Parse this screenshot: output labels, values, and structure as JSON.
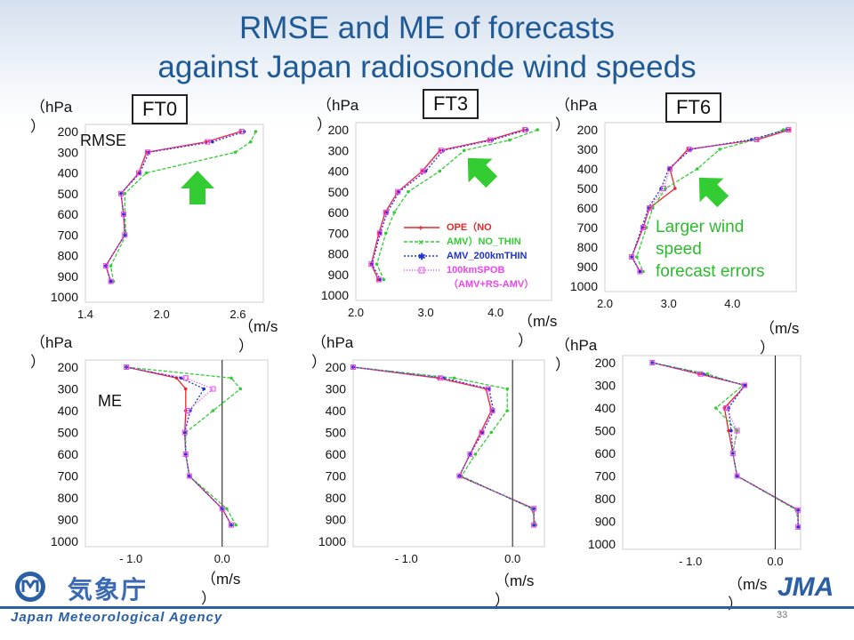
{
  "slide": {
    "title_line1": "RMSE and ME of forecasts",
    "title_line2": "against Japan radiosonde wind speeds",
    "page_number": "33",
    "agency_jp": "気象庁",
    "agency_en": "Japan Meteorological Agency",
    "jma_logo": "JMA"
  },
  "labels": {
    "ft0": "FT0",
    "ft3": "FT3",
    "ft6": "FT6",
    "rmse": "RMSE",
    "me": "ME",
    "hpa": "（hPa",
    "hpa_close": "）",
    "ms": "（m/s",
    "ms_close": "）",
    "note_line1": "Larger wind",
    "note_line2": "speed",
    "note_line3": "forecast errors"
  },
  "legend": [
    {
      "label": "OPE（NO",
      "color": "#e8262a"
    },
    {
      "label": "AMV）NO_THIN",
      "color": "#33cc33"
    },
    {
      "label": "AMV_200kmTHIN",
      "color": "#2233cc"
    },
    {
      "label": "100kmSPOB",
      "color": "#ee44ee"
    },
    {
      "label": "（AMV+RS-AMV）",
      "color": "#ee44ee"
    }
  ],
  "colors": {
    "ope": "#e8262a",
    "nothin": "#33cc33",
    "t200": "#2233cc",
    "spob": "#ee44ee",
    "accent": "#1f5a96",
    "arrow": "#33cc33"
  },
  "chart_data": [
    {
      "id": "rmse_ft0",
      "type": "line",
      "ylabel": "hPa",
      "xlabel": "m/s",
      "y": [
        200,
        250,
        300,
        400,
        500,
        600,
        700,
        850,
        925
      ],
      "ylim": [
        1000,
        200
      ],
      "xlim": [
        1.4,
        2.8
      ],
      "xticks": [
        "1.4",
        "2.0",
        "2.6"
      ],
      "xtick_values": [
        1.4,
        2.0,
        2.6
      ],
      "yticks": [
        "200",
        "300",
        "400",
        "500",
        "600",
        "700",
        "800",
        "900",
        "1000"
      ],
      "series": [
        {
          "name": "OPE",
          "x": [
            2.62,
            2.35,
            1.88,
            1.82,
            1.68,
            1.7,
            1.71,
            1.56,
            1.6
          ]
        },
        {
          "name": "NO_THIN",
          "x": [
            2.74,
            2.7,
            2.58,
            1.88,
            1.71,
            1.71,
            1.72,
            1.6,
            1.62
          ]
        },
        {
          "name": "200kmTHIN",
          "x": [
            2.65,
            2.4,
            1.9,
            1.83,
            1.68,
            1.7,
            1.71,
            1.56,
            1.6
          ]
        },
        {
          "name": "100kmSPOB",
          "x": [
            2.63,
            2.36,
            1.89,
            1.82,
            1.68,
            1.7,
            1.71,
            1.56,
            1.6
          ]
        }
      ]
    },
    {
      "id": "rmse_ft3",
      "type": "line",
      "ylabel": "hPa",
      "xlabel": "m/s",
      "y": [
        200,
        250,
        300,
        400,
        500,
        600,
        700,
        850,
        925
      ],
      "ylim": [
        1000,
        200
      ],
      "xlim": [
        2.0,
        4.8
      ],
      "xticks": [
        "2.0",
        "3.0",
        "4.0"
      ],
      "xtick_values": [
        2.0,
        3.0,
        4.0
      ],
      "yticks": [
        "200",
        "300",
        "400",
        "500",
        "600",
        "700",
        "800",
        "900",
        "1000"
      ],
      "series": [
        {
          "name": "OPE",
          "x": [
            4.4,
            3.9,
            3.2,
            2.95,
            2.6,
            2.42,
            2.33,
            2.22,
            2.32
          ]
        },
        {
          "name": "NO_THIN",
          "x": [
            4.6,
            4.2,
            3.55,
            3.2,
            2.75,
            2.55,
            2.43,
            2.3,
            2.4
          ]
        },
        {
          "name": "200kmTHIN",
          "x": [
            4.45,
            3.95,
            3.25,
            3.0,
            2.62,
            2.45,
            2.35,
            2.23,
            2.35
          ]
        },
        {
          "name": "100kmSPOB",
          "x": [
            4.42,
            3.92,
            3.22,
            2.96,
            2.6,
            2.43,
            2.34,
            2.22,
            2.33
          ]
        }
      ]
    },
    {
      "id": "rmse_ft6",
      "type": "line",
      "ylabel": "hPa",
      "xlabel": "m/s",
      "y": [
        200,
        250,
        300,
        400,
        500,
        600,
        700,
        850,
        925
      ],
      "ylim": [
        1000,
        200
      ],
      "xlim": [
        2.0,
        5.0
      ],
      "xticks": [
        "2.0",
        "3.0",
        "4.0"
      ],
      "xtick_values": [
        2.0,
        3.0,
        4.0
      ],
      "yticks": [
        "200",
        "300",
        "400",
        "500",
        "600",
        "700",
        "800",
        "900",
        "1000"
      ],
      "series": [
        {
          "name": "OPE",
          "x": [
            4.9,
            4.4,
            3.3,
            3.02,
            3.1,
            2.7,
            2.6,
            2.42,
            2.55
          ]
        },
        {
          "name": "NO_THIN",
          "x": [
            4.8,
            4.35,
            3.8,
            3.45,
            2.95,
            2.75,
            2.65,
            2.5,
            2.6
          ]
        },
        {
          "name": "200kmTHIN",
          "x": [
            4.85,
            4.3,
            3.35,
            3.0,
            2.88,
            2.68,
            2.58,
            2.42,
            2.55
          ]
        },
        {
          "name": "100kmSPOB",
          "x": [
            4.88,
            4.38,
            3.32,
            3.02,
            2.92,
            2.7,
            2.6,
            2.42,
            2.55
          ]
        }
      ]
    },
    {
      "id": "me_ft0",
      "type": "line",
      "ylabel": "hPa",
      "xlabel": "m/s",
      "y": [
        200,
        250,
        300,
        400,
        500,
        600,
        700,
        850,
        925
      ],
      "ylim": [
        1000,
        200
      ],
      "xlim": [
        -1.5,
        0.5
      ],
      "xticks": [
        "- 1.0",
        "0.0"
      ],
      "xtick_values": [
        -1.0,
        0.0
      ],
      "yticks": [
        "200",
        "300",
        "400",
        "500",
        "600",
        "700",
        "800",
        "900",
        "1000"
      ],
      "series": [
        {
          "name": "OPE",
          "x": [
            -1.05,
            -0.5,
            -0.4,
            -0.4,
            -0.41,
            -0.4,
            -0.36,
            0.0,
            0.1
          ]
        },
        {
          "name": "NO_THIN",
          "x": [
            -1.05,
            0.1,
            0.2,
            -0.1,
            -0.4,
            -0.4,
            -0.36,
            0.05,
            0.15
          ]
        },
        {
          "name": "200kmTHIN",
          "x": [
            -1.05,
            -0.45,
            -0.2,
            -0.35,
            -0.41,
            -0.4,
            -0.36,
            0.0,
            0.1
          ]
        },
        {
          "name": "100kmSPOB",
          "x": [
            -1.05,
            -0.4,
            -0.1,
            -0.38,
            -0.41,
            -0.4,
            -0.36,
            0.0,
            0.1
          ]
        }
      ]
    },
    {
      "id": "me_ft3",
      "type": "line",
      "ylabel": "hPa",
      "xlabel": "m/s",
      "y": [
        200,
        250,
        300,
        400,
        500,
        600,
        700,
        850,
        925
      ],
      "ylim": [
        1000,
        200
      ],
      "xlim": [
        -1.5,
        0.3
      ],
      "xticks": [
        "- 1.0",
        "0.0"
      ],
      "xtick_values": [
        -1.0,
        0.0
      ],
      "yticks": [
        "200",
        "300",
        "400",
        "500",
        "600",
        "700",
        "800",
        "900",
        "1000"
      ],
      "series": [
        {
          "name": "OPE",
          "x": [
            -1.5,
            -0.7,
            -0.25,
            -0.2,
            -0.3,
            -0.4,
            -0.5,
            0.2,
            0.2
          ]
        },
        {
          "name": "NO_THIN",
          "x": [
            -1.5,
            -0.55,
            -0.05,
            -0.05,
            -0.2,
            -0.35,
            -0.48,
            0.18,
            0.22
          ]
        },
        {
          "name": "200kmTHIN",
          "x": [
            -1.5,
            -0.65,
            -0.22,
            -0.18,
            -0.28,
            -0.4,
            -0.5,
            0.2,
            0.2
          ]
        },
        {
          "name": "100kmSPOB",
          "x": [
            -1.5,
            -0.68,
            -0.23,
            -0.19,
            -0.29,
            -0.4,
            -0.5,
            0.2,
            0.2
          ]
        }
      ]
    },
    {
      "id": "me_ft6",
      "type": "line",
      "ylabel": "hPa",
      "xlabel": "m/s",
      "y": [
        200,
        250,
        300,
        400,
        500,
        600,
        700,
        850,
        925
      ],
      "ylim": [
        1000,
        200
      ],
      "xlim": [
        -1.8,
        0.3
      ],
      "xticks": [
        "- 1.0",
        "0.0"
      ],
      "xtick_values": [
        -1.0,
        0.0
      ],
      "yticks": [
        "200",
        "300",
        "400",
        "500",
        "600",
        "700",
        "800",
        "900",
        "1000"
      ],
      "series": [
        {
          "name": "OPE",
          "x": [
            -1.45,
            -0.9,
            -0.35,
            -0.6,
            -0.55,
            -0.5,
            -0.45,
            0.27,
            0.27
          ]
        },
        {
          "name": "NO_THIN",
          "x": [
            -1.45,
            -0.8,
            -0.38,
            -0.7,
            -0.45,
            -0.5,
            -0.45,
            0.25,
            0.28
          ]
        },
        {
          "name": "200kmTHIN",
          "x": [
            -1.45,
            -0.85,
            -0.36,
            -0.55,
            -0.52,
            -0.5,
            -0.45,
            0.27,
            0.27
          ]
        },
        {
          "name": "100kmSPOB",
          "x": [
            -1.45,
            -0.88,
            -0.36,
            -0.58,
            -0.45,
            -0.5,
            -0.45,
            0.27,
            0.27
          ]
        }
      ]
    }
  ]
}
